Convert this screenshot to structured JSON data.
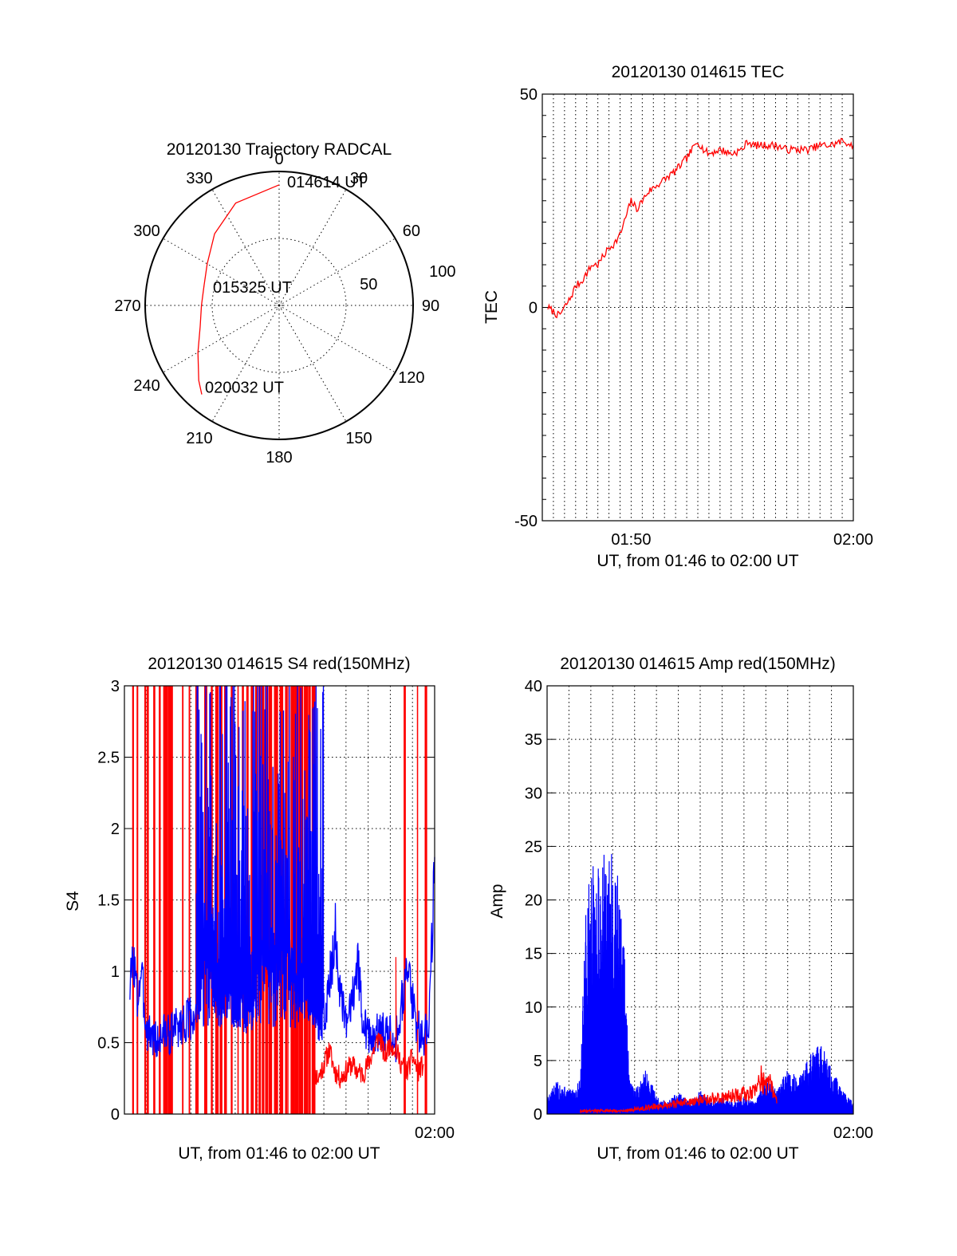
{
  "chart_data": [
    {
      "id": "polar",
      "type": "polar-trajectory",
      "title": "20120130 Trajectory RADCAL",
      "angle_labels": [
        "0",
        "30",
        "60",
        "90",
        "120",
        "150",
        "180",
        "210",
        "240",
        "270",
        "300",
        "330"
      ],
      "radial_labels": [
        "50",
        "100"
      ],
      "rlim": [
        0,
        100
      ],
      "grid": true,
      "trajectory_color": "#ff0000",
      "trajectory": [
        {
          "az": 0,
          "r": 90
        },
        {
          "az": 337,
          "r": 83
        },
        {
          "az": 318,
          "r": 72
        },
        {
          "az": 300,
          "r": 62
        },
        {
          "az": 285,
          "r": 58
        },
        {
          "az": 270,
          "r": 58
        },
        {
          "az": 255,
          "r": 61
        },
        {
          "az": 240,
          "r": 70
        },
        {
          "az": 227,
          "r": 82
        },
        {
          "az": 221,
          "r": 88
        }
      ],
      "annotations": [
        {
          "text": "014614 UT",
          "az": 0,
          "r": 90
        },
        {
          "text": "015325 UT",
          "az": 0,
          "r": 0
        },
        {
          "text": "020032 UT",
          "az": 221,
          "r": 88
        }
      ]
    },
    {
      "id": "tec",
      "type": "line",
      "title": "20120130 014615 TEC",
      "ylabel": "TEC",
      "xlabel": "UT, from 01:46 to 02:00 UT",
      "xlim": [
        "01:46",
        "02:00"
      ],
      "ylim": [
        -50,
        50
      ],
      "xticks": [
        {
          "x": "01:50",
          "label": "01:50"
        },
        {
          "x": "02:00",
          "label": "02:00"
        }
      ],
      "yticks": [
        -50,
        0,
        50
      ],
      "grid": true,
      "series": [
        {
          "color": "#ff0000",
          "points": [
            [
              "01:46:15",
              0
            ],
            [
              "01:46:30",
              -1
            ],
            [
              "01:46:45",
              -2
            ],
            [
              "01:47:00",
              0
            ],
            [
              "01:47:15",
              2
            ],
            [
              "01:47:30",
              5
            ],
            [
              "01:47:45",
              6
            ],
            [
              "01:48:00",
              8
            ],
            [
              "01:48:15",
              10
            ],
            [
              "01:48:30",
              10
            ],
            [
              "01:48:45",
              12
            ],
            [
              "01:49:00",
              14
            ],
            [
              "01:49:15",
              15
            ],
            [
              "01:49:30",
              17
            ],
            [
              "01:49:45",
              21
            ],
            [
              "01:50:00",
              25
            ],
            [
              "01:50:15",
              23
            ],
            [
              "01:50:30",
              25
            ],
            [
              "01:50:45",
              27
            ],
            [
              "01:51:00",
              28
            ],
            [
              "01:51:30",
              30
            ],
            [
              "01:52:00",
              32
            ],
            [
              "01:52:30",
              35
            ],
            [
              "01:52:45",
              37
            ],
            [
              "01:53:00",
              39
            ],
            [
              "01:53:15",
              37
            ],
            [
              "01:53:30",
              36
            ],
            [
              "01:54:00",
              37
            ],
            [
              "01:54:30",
              36
            ],
            [
              "01:55:00",
              37
            ],
            [
              "01:55:15",
              39
            ],
            [
              "01:55:30",
              38
            ],
            [
              "01:56:00",
              38
            ],
            [
              "01:56:30",
              38
            ],
            [
              "01:57:00",
              37
            ],
            [
              "01:57:30",
              37
            ],
            [
              "01:58:00",
              37
            ],
            [
              "01:58:30",
              38
            ],
            [
              "01:59:00",
              38
            ],
            [
              "01:59:30",
              39
            ],
            [
              "02:00:00",
              38
            ]
          ]
        }
      ]
    },
    {
      "id": "s4",
      "type": "line",
      "title": "20120130 014615 S4 red(150MHz)",
      "ylabel": "S4",
      "xlabel": "UT, from 01:46 to 02:00 UT",
      "xlim": [
        "01:46",
        "02:00"
      ],
      "ylim": [
        0,
        3
      ],
      "xticks": [
        {
          "x": "02:00",
          "label": "02:00"
        }
      ],
      "yticks": [
        0,
        0.5,
        1,
        1.5,
        2,
        2.5,
        3
      ],
      "grid": true,
      "red_vertical_spikes_min": [
        0.35,
        0.55,
        0.9,
        1.0,
        1.3,
        1.55,
        1.75,
        1.8,
        1.95,
        2.0,
        2.1,
        2.6,
        2.9,
        3.2,
        3.6,
        3.9,
        4.1,
        4.3,
        4.5,
        4.8,
        5.1,
        5.3,
        5.5,
        5.7,
        5.9,
        6.05,
        6.2,
        6.35,
        6.5,
        6.6,
        6.75,
        6.85,
        7.0,
        7.1,
        7.25,
        7.35,
        7.5,
        7.6,
        7.7,
        7.85,
        7.95,
        8.1,
        8.2,
        8.3,
        8.45,
        8.55,
        12.6,
        13.2,
        13.55
      ],
      "series": [
        {
          "color": "#0000ff",
          "points": [
            [
              "01:46:15",
              0.9
            ],
            [
              "01:46:25",
              1.1
            ],
            [
              "01:46:35",
              0.8
            ],
            [
              "01:46:45",
              1.0
            ],
            [
              "01:47:00",
              0.6
            ],
            [
              "01:47:15",
              0.55
            ],
            [
              "01:47:30",
              0.5
            ],
            [
              "01:47:45",
              0.58
            ],
            [
              "01:48:00",
              0.55
            ],
            [
              "01:48:15",
              0.6
            ],
            [
              "01:49:15",
              0.7
            ],
            [
              "01:49:30",
              0.9
            ],
            [
              "01:49:45",
              1.2
            ],
            [
              "01:50:00",
              0.8
            ],
            [
              "01:51:45",
              0.7
            ],
            [
              "01:52:00",
              0.9
            ],
            [
              "01:52:15",
              1.2
            ],
            [
              "01:54:30",
              0.8
            ],
            [
              "01:54:45",
              0.55
            ],
            [
              "01:55:00",
              0.7
            ],
            [
              "01:55:15",
              0.9
            ],
            [
              "01:55:30",
              1.3
            ],
            [
              "01:55:45",
              0.8
            ],
            [
              "01:56:00",
              0.6
            ],
            [
              "01:56:15",
              0.8
            ],
            [
              "01:56:30",
              1.1
            ],
            [
              "01:56:45",
              0.7
            ],
            [
              "01:57:00",
              0.55
            ],
            [
              "01:57:15",
              0.5
            ],
            [
              "01:57:30",
              0.6
            ],
            [
              "01:57:45",
              0.55
            ],
            [
              "01:58:00",
              0.6
            ],
            [
              "01:58:15",
              0.5
            ],
            [
              "01:58:30",
              0.8
            ],
            [
              "01:58:45",
              1.0
            ],
            [
              "01:59:00",
              0.8
            ],
            [
              "01:59:15",
              0.6
            ],
            [
              "01:59:30",
              0.5
            ],
            [
              "01:59:45",
              0.7
            ],
            [
              "02:00:00",
              1.8
            ]
          ]
        },
        {
          "color": "#ff0000",
          "points": [
            [
              "01:54:30",
              0.3
            ],
            [
              "01:54:45",
              0.25
            ],
            [
              "01:55:00",
              0.35
            ],
            [
              "01:55:15",
              0.45
            ],
            [
              "01:55:30",
              0.3
            ],
            [
              "01:55:45",
              0.25
            ],
            [
              "01:56:00",
              0.3
            ],
            [
              "01:56:15",
              0.35
            ],
            [
              "01:56:30",
              0.3
            ],
            [
              "01:56:45",
              0.28
            ],
            [
              "01:57:00",
              0.35
            ],
            [
              "01:57:15",
              0.45
            ],
            [
              "01:57:30",
              0.55
            ],
            [
              "01:57:45",
              0.4
            ],
            [
              "01:58:00",
              0.5
            ],
            [
              "01:58:15",
              0.45
            ],
            [
              "01:58:30",
              0.35
            ],
            [
              "01:58:45",
              0.3
            ],
            [
              "01:59:00",
              0.4
            ],
            [
              "01:59:15",
              0.3
            ],
            [
              "01:59:30",
              0.35
            ]
          ]
        }
      ]
    },
    {
      "id": "amp",
      "type": "line",
      "title": "20120130 014615 Amp red(150MHz)",
      "ylabel": "Amp",
      "xlabel": "UT, from 01:46 to 02:00 UT",
      "xlim": [
        "01:46",
        "02:00"
      ],
      "ylim": [
        0,
        40
      ],
      "xticks": [
        {
          "x": "02:00",
          "label": "02:00"
        }
      ],
      "yticks": [
        0,
        5,
        10,
        15,
        20,
        25,
        30,
        35,
        40
      ],
      "grid": true,
      "series": [
        {
          "color": "#0000ff",
          "points": [
            [
              "01:46:00",
              1.5
            ],
            [
              "01:46:30",
              3
            ],
            [
              "01:47:00",
              2
            ],
            [
              "01:47:30",
              3
            ],
            [
              "01:47:45",
              17
            ],
            [
              "01:48:00",
              22
            ],
            [
              "01:48:15",
              20
            ],
            [
              "01:48:30",
              24
            ],
            [
              "01:48:45",
              21
            ],
            [
              "01:49:00",
              23
            ],
            [
              "01:49:15",
              20
            ],
            [
              "01:49:30",
              16
            ],
            [
              "01:49:45",
              3
            ],
            [
              "01:50:00",
              2
            ],
            [
              "01:50:30",
              4
            ],
            [
              "01:51:00",
              1.5
            ],
            [
              "01:51:30",
              1
            ],
            [
              "01:52:00",
              2
            ],
            [
              "01:52:30",
              1
            ],
            [
              "01:53:00",
              2
            ],
            [
              "01:53:30",
              1
            ],
            [
              "01:54:00",
              1.5
            ],
            [
              "01:54:30",
              1
            ],
            [
              "01:55:00",
              1.5
            ],
            [
              "01:55:30",
              1
            ],
            [
              "01:56:00",
              3
            ],
            [
              "01:56:30",
              2
            ],
            [
              "01:57:00",
              4
            ],
            [
              "01:57:30",
              3
            ],
            [
              "01:58:00",
              5
            ],
            [
              "01:58:30",
              6
            ],
            [
              "01:59:00",
              4
            ],
            [
              "01:59:30",
              2
            ],
            [
              "02:00:00",
              1
            ]
          ]
        },
        {
          "color": "#ff0000",
          "points": [
            [
              "01:47:30",
              0.3
            ],
            [
              "01:48:00",
              0.3
            ],
            [
              "01:48:30",
              0.3
            ],
            [
              "01:49:00",
              0.3
            ],
            [
              "01:49:30",
              0.3
            ],
            [
              "01:55:30",
              2
            ],
            [
              "01:55:45",
              3.5
            ],
            [
              "01:56:00",
              2.5
            ],
            [
              "01:56:15",
              3
            ],
            [
              "01:56:30",
              1
            ]
          ]
        }
      ]
    }
  ]
}
